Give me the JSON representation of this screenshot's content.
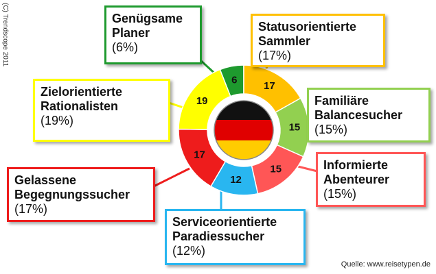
{
  "chart_data": {
    "type": "donut",
    "credit": "(C) Trendscope 2011",
    "source": "Quelle: www.reisetypen.de",
    "categories": [
      "Genügsame Planer",
      "Statusorientierte Sammler",
      "Familiäre Balancesucher",
      "Informierte Abenteurer",
      "Serviceorientierte Paradiessucher",
      "Gelassene Begegnungssucher",
      "Zielorientierte Rationalisten"
    ],
    "series": [
      {
        "values": [
          6,
          17,
          15,
          15,
          12,
          17,
          19
        ],
        "value_labels": [
          "(6%)",
          "(17%)",
          "(15%)",
          "(15%)",
          "(12%)",
          "(17%)",
          "(19%)"
        ],
        "colors": [
          "#1e9a2e",
          "#ffc000",
          "#92d050",
          "#ff5656",
          "#29b6f0",
          "#ee1c1c",
          "#ffff00"
        ]
      }
    ]
  }
}
